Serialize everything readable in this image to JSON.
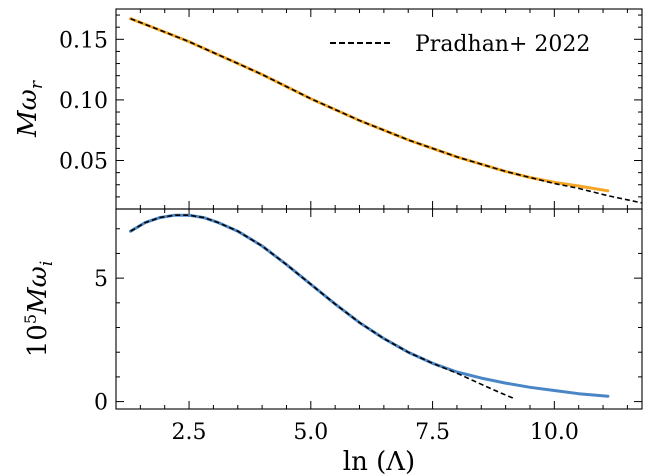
{
  "chart_data": [
    {
      "type": "line",
      "panel": "top",
      "xlabel": "",
      "ylabel": "Mω_r",
      "ylabel_parts": {
        "main": "Mω",
        "sub": "r"
      },
      "xlim": [
        1.0,
        11.8
      ],
      "ylim": [
        0.01,
        0.175
      ],
      "xticks": [
        2.5,
        5.0,
        7.5,
        10.0
      ],
      "xtick_labels": [
        "",
        "",
        "",
        ""
      ],
      "yticks": [
        0.05,
        0.1,
        0.15
      ],
      "ytick_labels": [
        "0.05",
        "0.10",
        "0.15"
      ],
      "legend": {
        "position": "top-right",
        "entries": [
          "Pradhan+ 2022"
        ]
      },
      "series": [
        {
          "color": "#f5a623",
          "style": "solid",
          "x": [
            1.3,
            2.0,
            2.5,
            3.0,
            3.5,
            4.0,
            4.5,
            5.0,
            5.5,
            6.0,
            6.5,
            7.0,
            7.5,
            8.0,
            8.5,
            9.0,
            9.5,
            10.0,
            10.5,
            11.1
          ],
          "y": [
            0.167,
            0.156,
            0.148,
            0.139,
            0.13,
            0.121,
            0.111,
            0.101,
            0.092,
            0.083,
            0.075,
            0.067,
            0.06,
            0.053,
            0.047,
            0.041,
            0.036,
            0.032,
            0.029,
            0.025
          ]
        },
        {
          "name": "Pradhan+ 2022",
          "color": "#000000",
          "style": "dashed",
          "x": [
            1.3,
            2.0,
            2.5,
            3.0,
            3.5,
            4.0,
            4.5,
            5.0,
            5.5,
            6.0,
            6.5,
            7.0,
            7.5,
            8.0,
            8.5,
            9.0,
            9.5,
            10.0,
            10.5,
            11.1,
            11.8
          ],
          "y": [
            0.167,
            0.156,
            0.148,
            0.139,
            0.13,
            0.121,
            0.111,
            0.101,
            0.092,
            0.083,
            0.075,
            0.067,
            0.06,
            0.053,
            0.047,
            0.041,
            0.036,
            0.031,
            0.027,
            0.021,
            0.015
          ]
        }
      ]
    },
    {
      "type": "line",
      "panel": "bottom",
      "xlabel": "ln (Λ)",
      "ylabel": "10^5 Mω_i",
      "ylabel_parts": {
        "base": "10",
        "exp": "5",
        "main": "Mω",
        "sub": "i"
      },
      "xlim": [
        1.0,
        11.8
      ],
      "ylim": [
        -0.3,
        7.8
      ],
      "xticks": [
        2.5,
        5.0,
        7.5,
        10.0
      ],
      "xtick_labels": [
        "2.5",
        "5.0",
        "7.5",
        "10.0"
      ],
      "yticks": [
        0,
        5
      ],
      "ytick_labels": [
        "0",
        "5"
      ],
      "series": [
        {
          "color": "#4a86c5",
          "style": "solid",
          "x": [
            1.3,
            1.6,
            1.9,
            2.2,
            2.5,
            2.8,
            3.1,
            3.5,
            4.0,
            4.5,
            5.0,
            5.5,
            6.0,
            6.5,
            7.0,
            7.5,
            8.0,
            8.5,
            9.0,
            9.5,
            10.0,
            10.5,
            11.1
          ],
          "y": [
            6.9,
            7.25,
            7.45,
            7.55,
            7.55,
            7.45,
            7.25,
            6.9,
            6.3,
            5.55,
            4.75,
            3.95,
            3.2,
            2.55,
            2.0,
            1.55,
            1.2,
            0.95,
            0.75,
            0.58,
            0.45,
            0.32,
            0.22
          ]
        },
        {
          "name": "Pradhan+ 2022",
          "color": "#000000",
          "style": "dashed",
          "x": [
            1.3,
            1.6,
            1.9,
            2.2,
            2.5,
            2.8,
            3.1,
            3.5,
            4.0,
            4.5,
            5.0,
            5.5,
            6.0,
            6.5,
            7.0,
            7.5,
            8.0,
            8.5,
            8.9,
            9.2
          ],
          "y": [
            6.9,
            7.25,
            7.45,
            7.55,
            7.55,
            7.45,
            7.25,
            6.9,
            6.3,
            5.55,
            4.75,
            3.95,
            3.2,
            2.55,
            2.0,
            1.55,
            1.15,
            0.7,
            0.35,
            0.1
          ]
        }
      ]
    }
  ]
}
